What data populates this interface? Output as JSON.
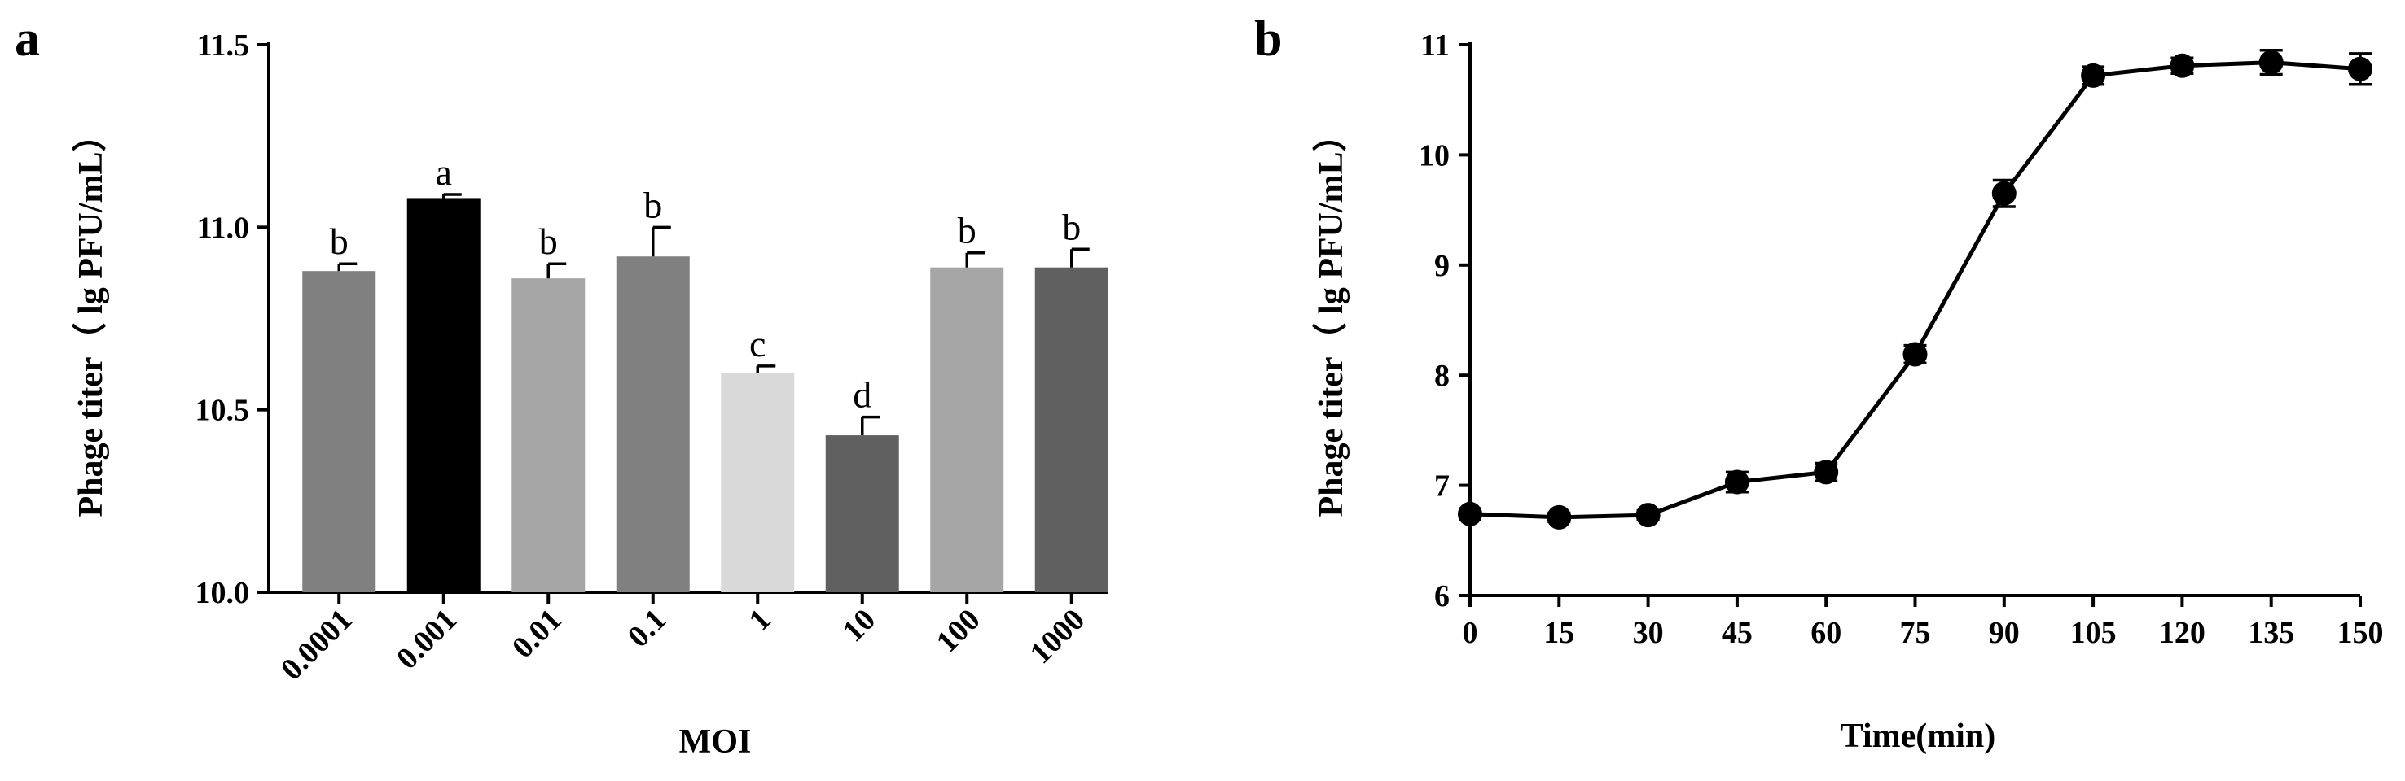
{
  "chart_data": [
    {
      "panel": "a",
      "type": "bar",
      "xlabel": "MOI",
      "ylabel": "Phage titer（ lg PFU/mL）",
      "ylim": [
        10.0,
        11.5
      ],
      "yticks": [
        "10.0",
        "10.5",
        "11.0",
        "11.5"
      ],
      "categories": [
        "0.0001",
        "0.001",
        "0.01",
        "0.1",
        "1",
        "10",
        "100",
        "1000"
      ],
      "values": [
        10.88,
        11.08,
        10.86,
        10.92,
        10.6,
        10.43,
        10.89,
        10.89
      ],
      "errors": [
        0.02,
        0.01,
        0.04,
        0.08,
        0.02,
        0.05,
        0.04,
        0.05
      ],
      "significance": [
        "b",
        "a",
        "b",
        "b",
        "c",
        "d",
        "b",
        "b"
      ],
      "bar_colors": [
        "#808080",
        "#000000",
        "#a5a5a5",
        "#808080",
        "#d9d9d9",
        "#606060",
        "#a6a6a6",
        "#606060"
      ],
      "grid": false
    },
    {
      "panel": "b",
      "type": "line",
      "xlabel": "Time(min)",
      "ylabel": "Phage titer（ lg PFU/mL）",
      "ylim": [
        6,
        11
      ],
      "yticks": [
        "6",
        "7",
        "8",
        "9",
        "10",
        "11"
      ],
      "x": [
        0,
        15,
        30,
        45,
        60,
        75,
        90,
        105,
        120,
        135,
        150
      ],
      "xticks": [
        "0",
        "15",
        "30",
        "45",
        "60",
        "75",
        "90",
        "105",
        "120",
        "135",
        "150"
      ],
      "y": [
        6.74,
        6.71,
        6.73,
        7.03,
        7.12,
        8.19,
        9.65,
        10.72,
        10.81,
        10.84,
        10.78
      ],
      "errors": [
        0.05,
        0.04,
        0.04,
        0.09,
        0.08,
        0.08,
        0.12,
        0.08,
        0.07,
        0.11,
        0.14
      ],
      "color": "#000000",
      "grid": false
    }
  ]
}
